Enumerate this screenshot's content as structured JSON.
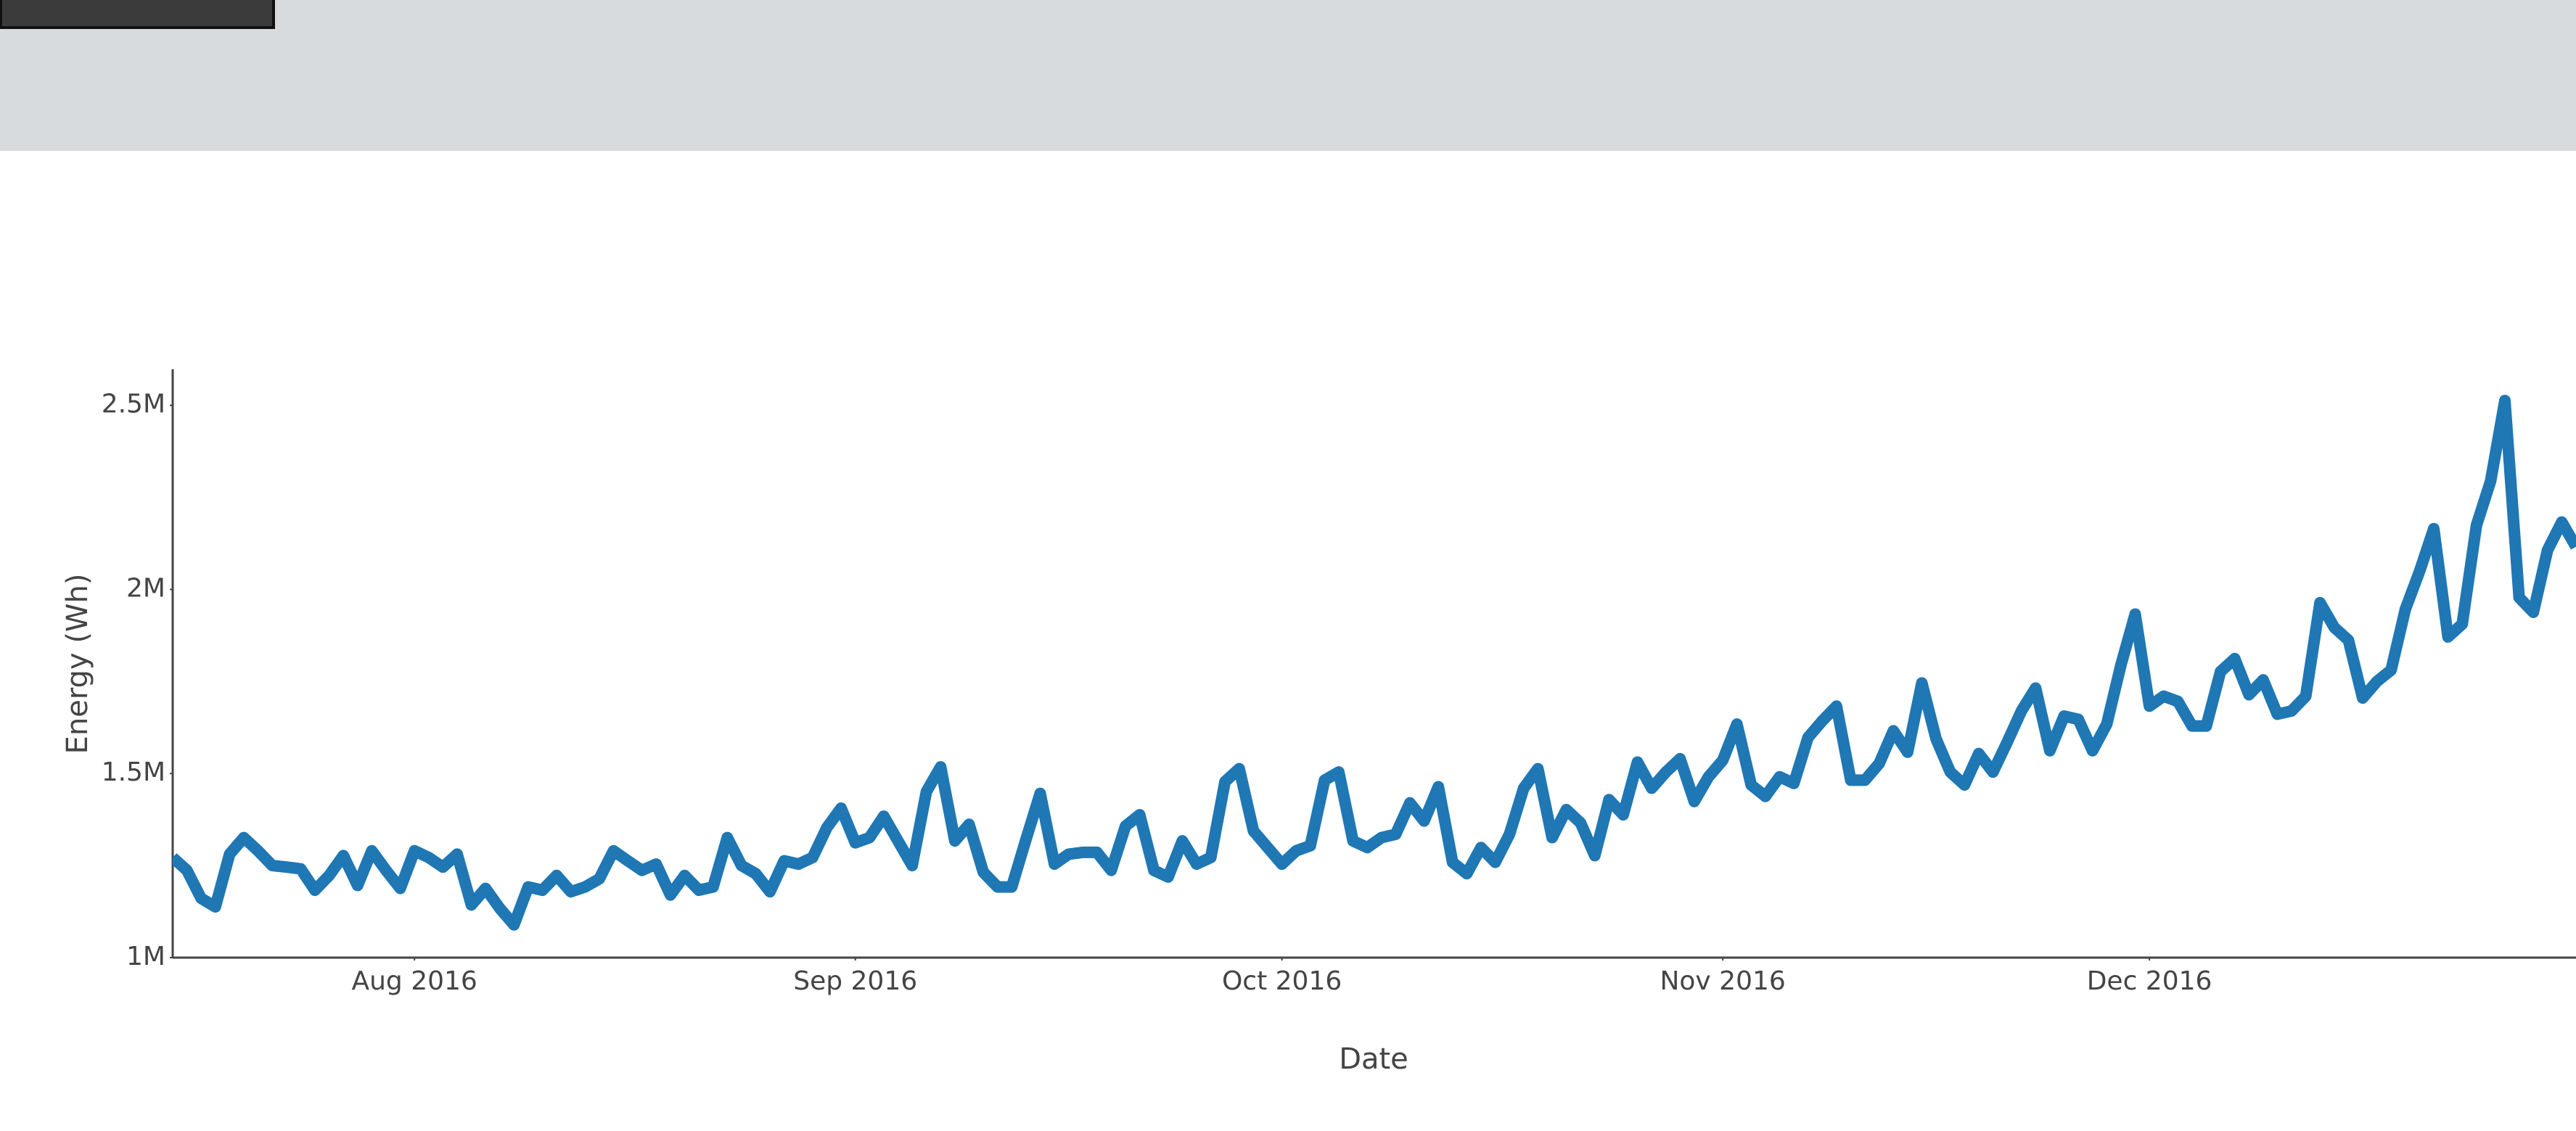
{
  "chart_data": {
    "type": "line",
    "xlabel": "Date",
    "ylabel": "Energy (Wh)",
    "xlim": [
      "2016-07-15",
      "2016-12-31"
    ],
    "xticks": [
      {
        "value": "2016-08-01",
        "label": "Aug 2016"
      },
      {
        "value": "2016-09-01",
        "label": "Sep 2016"
      },
      {
        "value": "2016-10-01",
        "label": "Oct 2016"
      },
      {
        "value": "2016-11-01",
        "label": "Nov 2016"
      },
      {
        "value": "2016-12-01",
        "label": "Dec 2016"
      }
    ],
    "ylim": [
      1000000,
      2598000
    ],
    "yticks": [
      {
        "value": 1000000,
        "label": "1M"
      },
      {
        "value": 1500000,
        "label": "1.5M"
      },
      {
        "value": 2000000,
        "label": "2M"
      },
      {
        "value": 2500000,
        "label": "2.5M"
      }
    ],
    "grid": false,
    "x": [
      "2016-07-15",
      "2016-07-16",
      "2016-07-17",
      "2016-07-18",
      "2016-07-19",
      "2016-07-20",
      "2016-07-21",
      "2016-07-22",
      "2016-07-23",
      "2016-07-24",
      "2016-07-25",
      "2016-07-26",
      "2016-07-27",
      "2016-07-28",
      "2016-07-29",
      "2016-07-30",
      "2016-07-31",
      "2016-08-01",
      "2016-08-02",
      "2016-08-03",
      "2016-08-04",
      "2016-08-05",
      "2016-08-06",
      "2016-08-07",
      "2016-08-08",
      "2016-08-09",
      "2016-08-10",
      "2016-08-11",
      "2016-08-12",
      "2016-08-13",
      "2016-08-14",
      "2016-08-15",
      "2016-08-16",
      "2016-08-17",
      "2016-08-18",
      "2016-08-19",
      "2016-08-20",
      "2016-08-21",
      "2016-08-22",
      "2016-08-23",
      "2016-08-24",
      "2016-08-25",
      "2016-08-26",
      "2016-08-27",
      "2016-08-28",
      "2016-08-29",
      "2016-08-30",
      "2016-08-31",
      "2016-09-01",
      "2016-09-02",
      "2016-09-03",
      "2016-09-04",
      "2016-09-05",
      "2016-09-06",
      "2016-09-07",
      "2016-09-08",
      "2016-09-09",
      "2016-09-10",
      "2016-09-11",
      "2016-09-12",
      "2016-09-13",
      "2016-09-14",
      "2016-09-15",
      "2016-09-16",
      "2016-09-17",
      "2016-09-18",
      "2016-09-19",
      "2016-09-20",
      "2016-09-21",
      "2016-09-22",
      "2016-09-23",
      "2016-09-24",
      "2016-09-25",
      "2016-09-26",
      "2016-09-27",
      "2016-09-28",
      "2016-09-29",
      "2016-09-30",
      "2016-10-01",
      "2016-10-02",
      "2016-10-03",
      "2016-10-04",
      "2016-10-05",
      "2016-10-06",
      "2016-10-07",
      "2016-10-08",
      "2016-10-09",
      "2016-10-10",
      "2016-10-11",
      "2016-10-12",
      "2016-10-13",
      "2016-10-14",
      "2016-10-15",
      "2016-10-16",
      "2016-10-17",
      "2016-10-18",
      "2016-10-19",
      "2016-10-20",
      "2016-10-21",
      "2016-10-22",
      "2016-10-23",
      "2016-10-24",
      "2016-10-25",
      "2016-10-26",
      "2016-10-27",
      "2016-10-28",
      "2016-10-29",
      "2016-10-30",
      "2016-10-31",
      "2016-11-01",
      "2016-11-02",
      "2016-11-03",
      "2016-11-04",
      "2016-11-05",
      "2016-11-06",
      "2016-11-07",
      "2016-11-08",
      "2016-11-09",
      "2016-11-10",
      "2016-11-11",
      "2016-11-12",
      "2016-11-13",
      "2016-11-14",
      "2016-11-15",
      "2016-11-16",
      "2016-11-17",
      "2016-11-18",
      "2016-11-19",
      "2016-11-20",
      "2016-11-21",
      "2016-11-22",
      "2016-11-23",
      "2016-11-24",
      "2016-11-25",
      "2016-11-26",
      "2016-11-27",
      "2016-11-28",
      "2016-11-29",
      "2016-11-30",
      "2016-12-01",
      "2016-12-02",
      "2016-12-03",
      "2016-12-04",
      "2016-12-05",
      "2016-12-06",
      "2016-12-07",
      "2016-12-08",
      "2016-12-09",
      "2016-12-10",
      "2016-12-11",
      "2016-12-12",
      "2016-12-13",
      "2016-12-14",
      "2016-12-15",
      "2016-12-16",
      "2016-12-17",
      "2016-12-18",
      "2016-12-19",
      "2016-12-20",
      "2016-12-21",
      "2016-12-22",
      "2016-12-23",
      "2016-12-24",
      "2016-12-25",
      "2016-12-26",
      "2016-12-27",
      "2016-12-28",
      "2016-12-29",
      "2016-12-30",
      "2016-12-31"
    ],
    "series": [
      {
        "name": "Energy",
        "color": "#1f77b4",
        "values": [
          1272000,
          1237000,
          1161000,
          1138000,
          1281000,
          1326000,
          1290000,
          1250000,
          1246000,
          1241000,
          1183000,
          1223000,
          1277000,
          1196000,
          1290000,
          1237000,
          1188000,
          1290000,
          1272000,
          1246000,
          1281000,
          1143000,
          1188000,
          1134000,
          1089000,
          1192000,
          1183000,
          1223000,
          1179000,
          1192000,
          1214000,
          1290000,
          1263000,
          1237000,
          1254000,
          1170000,
          1223000,
          1183000,
          1192000,
          1326000,
          1250000,
          1228000,
          1179000,
          1263000,
          1254000,
          1272000,
          1353000,
          1406000,
          1312000,
          1326000,
          1384000,
          1317000,
          1250000,
          1451000,
          1518000,
          1317000,
          1362000,
          1232000,
          1192000,
          1192000,
          1321000,
          1446000,
          1254000,
          1281000,
          1286000,
          1286000,
          1237000,
          1357000,
          1388000,
          1237000,
          1219000,
          1317000,
          1254000,
          1272000,
          1478000,
          1513000,
          1344000,
          1299000,
          1254000,
          1290000,
          1304000,
          1482000,
          1504000,
          1317000,
          1299000,
          1326000,
          1335000,
          1420000,
          1371000,
          1464000,
          1259000,
          1228000,
          1299000,
          1259000,
          1335000,
          1460000,
          1513000,
          1326000,
          1402000,
          1366000,
          1277000,
          1429000,
          1388000,
          1531000,
          1460000,
          1504000,
          1540000,
          1424000,
          1491000,
          1536000,
          1634000,
          1469000,
          1438000,
          1491000,
          1473000,
          1598000,
          1643000,
          1683000,
          1482000,
          1482000,
          1527000,
          1616000,
          1558000,
          1746000,
          1594000,
          1504000,
          1469000,
          1554000,
          1504000,
          1585000,
          1670000,
          1732000,
          1562000,
          1656000,
          1647000,
          1562000,
          1634000,
          1795000,
          1933000,
          1683000,
          1710000,
          1696000,
          1629000,
          1629000,
          1777000,
          1812000,
          1714000,
          1754000,
          1661000,
          1670000,
          1710000,
          1964000,
          1897000,
          1862000,
          1705000,
          1750000,
          1781000,
          1946000,
          2049000,
          2165000,
          1871000,
          1906000,
          2174000,
          2295000,
          2513000,
          1978000,
          1938000,
          2107000,
          2183000,
          2116000
        ]
      }
    ]
  }
}
